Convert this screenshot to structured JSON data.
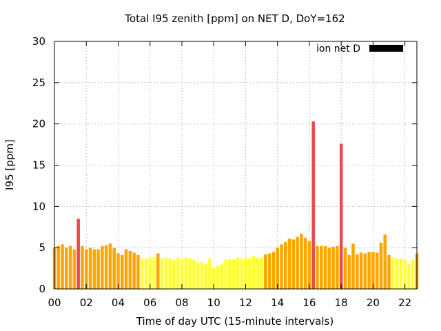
{
  "chart_data": {
    "type": "bar",
    "title": "Total I95 zenith [ppm] on NET D, DoY=162",
    "xlabel": "Time of day UTC (15-minute intervals)",
    "ylabel": "I95 [ppm]",
    "ylim": [
      0,
      30
    ],
    "xlim": [
      0,
      22.75
    ],
    "xtick_labels": [
      "00",
      "02",
      "04",
      "06",
      "08",
      "10",
      "12",
      "14",
      "16",
      "18",
      "20",
      "22"
    ],
    "xtick_values": [
      0,
      2,
      4,
      6,
      8,
      10,
      12,
      14,
      16,
      18,
      20,
      22
    ],
    "ytick_values": [
      0,
      5,
      10,
      15,
      20,
      25,
      30
    ],
    "grid": true,
    "legend": {
      "label": "ion net D",
      "position": "top-right",
      "color": "#000000"
    },
    "interval_hours": 0.25,
    "color_scale": [
      {
        "max": 4.0,
        "color": "#ffff33"
      },
      {
        "max": 7.0,
        "color": "#ffa500"
      },
      {
        "max": 100,
        "color": "#e84c4c"
      }
    ],
    "values": [
      5.0,
      5.2,
      5.4,
      5.0,
      5.2,
      4.8,
      8.5,
      5.2,
      4.8,
      5.0,
      4.8,
      4.8,
      5.2,
      5.3,
      5.5,
      5.0,
      4.3,
      4.1,
      4.8,
      4.6,
      4.4,
      4.1,
      3.7,
      3.7,
      3.8,
      3.9,
      4.3,
      3.7,
      3.8,
      3.7,
      3.5,
      3.8,
      3.6,
      3.8,
      3.7,
      3.5,
      3.2,
      3.3,
      3.0,
      3.7,
      2.6,
      2.8,
      3.0,
      3.6,
      3.6,
      3.6,
      3.8,
      3.7,
      3.8,
      3.7,
      4.0,
      3.8,
      3.8,
      4.2,
      4.3,
      4.5,
      5.0,
      5.4,
      5.7,
      6.1,
      6.0,
      6.3,
      6.7,
      6.2,
      5.8,
      20.3,
      5.2,
      5.2,
      5.2,
      5.0,
      5.1,
      5.2,
      17.6,
      5.0,
      4.1,
      5.5,
      4.2,
      4.4,
      4.3,
      4.5,
      4.5,
      4.4,
      5.6,
      6.6,
      4.1,
      3.8,
      3.7,
      3.7,
      3.5,
      3.0,
      3.5,
      4.3
    ]
  }
}
